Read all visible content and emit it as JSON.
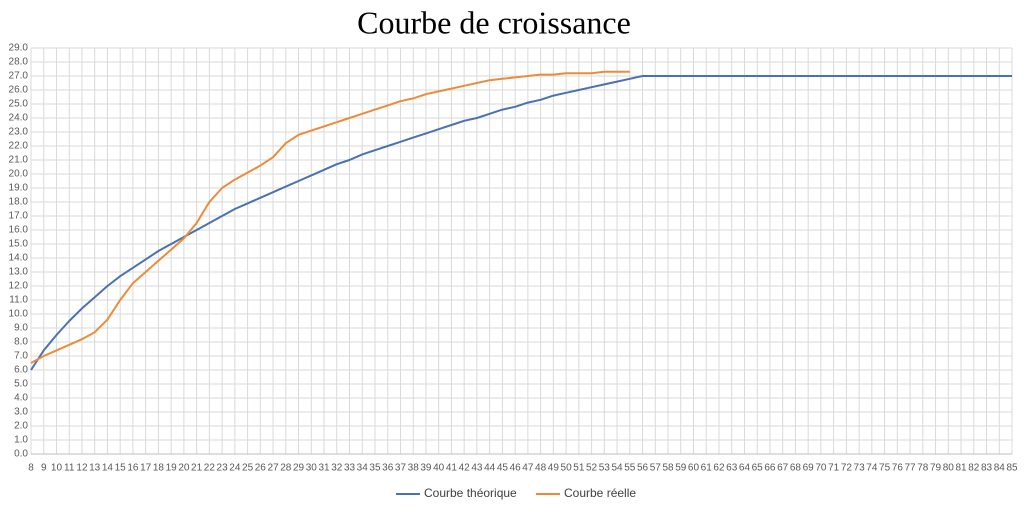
{
  "chart_data": {
    "type": "line",
    "title": "Courbe de croissance",
    "x": [
      8,
      9,
      10,
      11,
      12,
      13,
      14,
      15,
      16,
      17,
      18,
      19,
      20,
      21,
      22,
      23,
      24,
      25,
      26,
      27,
      28,
      29,
      30,
      31,
      32,
      33,
      34,
      35,
      36,
      37,
      38,
      39,
      40,
      41,
      42,
      43,
      44,
      45,
      46,
      47,
      48,
      49,
      50,
      51,
      52,
      53,
      54,
      55,
      56,
      57,
      58,
      59,
      60,
      61,
      62,
      63,
      64,
      65,
      66,
      67,
      68,
      69,
      70,
      71,
      72,
      73,
      74,
      75,
      76,
      77,
      78,
      79,
      80,
      81,
      82,
      83,
      84,
      85
    ],
    "xlim": [
      8,
      85
    ],
    "ylim": [
      0,
      29
    ],
    "yticks": [
      {
        "value": 0,
        "label": "0.0"
      },
      {
        "value": 1,
        "label": "1.0"
      },
      {
        "value": 2,
        "label": "2.0"
      },
      {
        "value": 3,
        "label": "3.0"
      },
      {
        "value": 4,
        "label": "4.0"
      },
      {
        "value": 5,
        "label": "5.0"
      },
      {
        "value": 6,
        "label": "6.0"
      },
      {
        "value": 7,
        "label": "7.0"
      },
      {
        "value": 8,
        "label": "8.0"
      },
      {
        "value": 9,
        "label": "9.0"
      },
      {
        "value": 10,
        "label": "10.0"
      },
      {
        "value": 11,
        "label": "11.0"
      },
      {
        "value": 12,
        "label": "12.0"
      },
      {
        "value": 13,
        "label": "13.0"
      },
      {
        "value": 14,
        "label": "14.0"
      },
      {
        "value": 15,
        "label": "15.0"
      },
      {
        "value": 16,
        "label": "16.0"
      },
      {
        "value": 17,
        "label": "17.0"
      },
      {
        "value": 18,
        "label": "18.0"
      },
      {
        "value": 19,
        "label": "19.0"
      },
      {
        "value": 20,
        "label": "20.0"
      },
      {
        "value": 21,
        "label": "21.0"
      },
      {
        "value": 22,
        "label": "22.0"
      },
      {
        "value": 23,
        "label": "23.0"
      },
      {
        "value": 24,
        "label": "24.0"
      },
      {
        "value": 25,
        "label": "25.0"
      },
      {
        "value": 26,
        "label": "26.0"
      },
      {
        "value": 27,
        "label": "27.0"
      },
      {
        "value": 28,
        "label": "28.0"
      },
      {
        "value": 29,
        "label": "29.0"
      }
    ],
    "grid": true,
    "legend": "bottom",
    "series": [
      {
        "name": "Courbe théorique",
        "color": "#4a72b0",
        "values": [
          6.0,
          7.4,
          8.5,
          9.5,
          10.4,
          11.2,
          12.0,
          12.7,
          13.3,
          13.9,
          14.5,
          15.0,
          15.5,
          16.0,
          16.5,
          17.0,
          17.5,
          17.9,
          18.3,
          18.7,
          19.1,
          19.5,
          19.9,
          20.3,
          20.7,
          21.0,
          21.4,
          21.7,
          22.0,
          22.3,
          22.6,
          22.9,
          23.2,
          23.5,
          23.8,
          24.0,
          24.3,
          24.6,
          24.8,
          25.1,
          25.3,
          25.6,
          25.8,
          26.0,
          26.2,
          26.4,
          26.6,
          26.8,
          27.0,
          27.0,
          27.0,
          27.0,
          27.0,
          27.0,
          27.0,
          27.0,
          27.0,
          27.0,
          27.0,
          27.0,
          27.0,
          27.0,
          27.0,
          27.0,
          27.0,
          27.0,
          27.0,
          27.0,
          27.0,
          27.0,
          27.0,
          27.0,
          27.0,
          27.0,
          27.0,
          27.0,
          27.0,
          27.0
        ]
      },
      {
        "name": "Courbe réelle",
        "color": "#ed8b3a",
        "values": [
          6.5,
          7.0,
          7.4,
          7.8,
          8.2,
          8.7,
          9.6,
          11.0,
          12.2,
          13.0,
          13.8,
          14.6,
          15.4,
          16.5,
          18.0,
          19.0,
          19.6,
          20.1,
          20.6,
          21.2,
          22.2,
          22.8,
          23.1,
          23.4,
          23.7,
          24.0,
          24.3,
          24.6,
          24.9,
          25.2,
          25.4,
          25.7,
          25.9,
          26.1,
          26.3,
          26.5,
          26.7,
          26.8,
          26.9,
          27.0,
          27.1,
          27.1,
          27.2,
          27.2,
          27.2,
          27.3,
          27.3,
          27.3,
          null,
          null,
          null,
          null,
          null,
          null,
          null,
          null,
          null,
          null,
          null,
          null,
          null,
          null,
          null,
          null,
          null,
          null,
          null,
          null,
          null,
          null,
          null,
          null,
          null,
          null,
          null,
          null,
          null,
          null
        ]
      }
    ]
  }
}
